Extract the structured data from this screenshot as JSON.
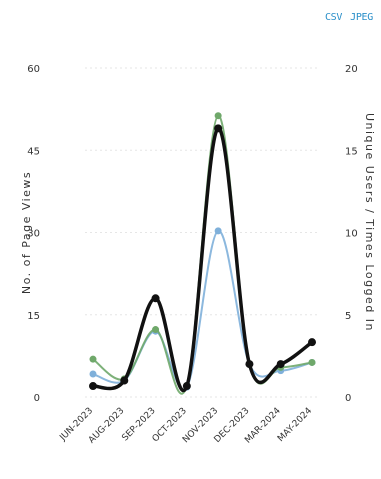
{
  "export": {
    "csv_label": "CSV",
    "jpeg_label": "JPEG"
  },
  "chart_data": {
    "type": "line",
    "categories": [
      "JUN-2023",
      "AUG-2023",
      "SEP-2023",
      "OCT-2023",
      "NOV-2023",
      "DEC-2023",
      "MAR-2024",
      "MAY-2024"
    ],
    "xlabel": "",
    "ylabel": "No. of Page Views",
    "y2label": "Unique Users / Times Logged In",
    "ylim": [
      0,
      60
    ],
    "y2lim": [
      0,
      20
    ],
    "yticks": [
      0,
      15,
      30,
      45,
      60
    ],
    "y2ticks": [
      0,
      5,
      10,
      15,
      20
    ],
    "grid": true,
    "series": [
      {
        "color": "#111111",
        "axis": "left",
        "width": 3.5,
        "markers": true,
        "values": [
          2,
          3,
          18,
          2,
          49,
          6,
          6,
          10
        ]
      },
      {
        "color": "#6fa86a",
        "axis": "right",
        "width": 2,
        "markers": true,
        "values": [
          2.3,
          1.1,
          4.1,
          0.7,
          17.1,
          2.0,
          1.8,
          2.1
        ]
      },
      {
        "color": "#7fb0da",
        "axis": "right",
        "width": 2,
        "markers": true,
        "values": [
          1.4,
          1.0,
          4.0,
          0.6,
          10.1,
          2.0,
          1.6,
          2.1
        ]
      }
    ]
  }
}
